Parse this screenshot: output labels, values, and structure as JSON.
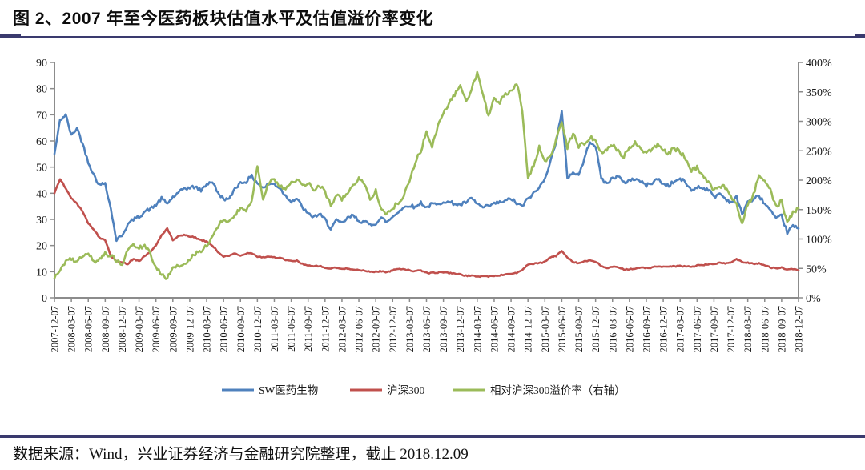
{
  "figure": {
    "title": "图 2、2007 年至今医药板块估值水平及估值溢价率变化",
    "source_note": "数据来源：Wind，兴业证券经济与金融研究院整理，截止 2018.12.09"
  },
  "accent_colors": {
    "rule_navy": "#3a3a6e",
    "axis_gray": "#8c8c8c"
  },
  "chart_data": {
    "type": "line",
    "title": "2007年至今医药板块估值水平及估值溢价率变化",
    "grid": false,
    "legend_position": "bottom",
    "left_axis": {
      "min": 0,
      "max": 90,
      "step": 10,
      "ticks": [
        "0",
        "10",
        "20",
        "30",
        "40",
        "50",
        "60",
        "70",
        "80",
        "90"
      ]
    },
    "right_axis": {
      "min": 0,
      "max": 400,
      "step": 50,
      "ticks": [
        "0%",
        "50%",
        "100%",
        "150%",
        "200%",
        "250%",
        "300%",
        "350%",
        "400%"
      ]
    },
    "x_tick_labels": [
      "2007-12-07",
      "2008-03-07",
      "2008-06-07",
      "2008-09-07",
      "2008-12-07",
      "2009-03-07",
      "2009-06-07",
      "2009-09-07",
      "2009-12-07",
      "2010-03-07",
      "2010-06-07",
      "2010-09-07",
      "2010-12-07",
      "2011-03-07",
      "2011-06-07",
      "2011-09-07",
      "2011-12-07",
      "2012-03-07",
      "2012-06-07",
      "2012-09-07",
      "2012-12-07",
      "2013-03-07",
      "2013-06-07",
      "2013-09-07",
      "2013-12-07",
      "2014-03-07",
      "2014-06-07",
      "2014-09-07",
      "2014-12-07",
      "2015-03-07",
      "2015-06-07",
      "2015-09-07",
      "2015-12-07",
      "2016-03-07",
      "2016-06-07",
      "2016-09-07",
      "2016-12-07",
      "2017-03-07",
      "2017-06-07",
      "2017-09-07",
      "2017-12-07",
      "2018-03-07",
      "2018-06-07",
      "2018-09-07",
      "2018-12-07"
    ],
    "x_monthly_start": "2007-12",
    "x_monthly_end": "2018-12",
    "series": [
      {
        "name": "SW医药生物",
        "color": "#4F81BD",
        "axis": "left",
        "values": [
          55,
          68,
          70,
          62,
          65,
          59,
          52,
          47,
          43,
          44,
          34,
          22,
          24,
          28,
          30,
          31,
          33,
          34,
          35.5,
          38,
          36,
          38.5,
          40,
          42,
          42,
          42.5,
          41,
          43.5,
          44.5,
          40,
          38,
          37.5,
          42,
          44,
          44.5,
          46.5,
          44,
          42,
          43.5,
          43.5,
          42,
          39,
          37,
          38,
          34.5,
          32,
          31,
          32,
          30,
          26.5,
          29.5,
          28.5,
          30.5,
          31.5,
          29.5,
          29,
          28,
          28.5,
          30.5,
          29,
          31,
          33,
          34.5,
          35.5,
          34.5,
          36.5,
          34.5,
          36,
          35.5,
          37,
          36.5,
          36,
          35.5,
          36.5,
          38,
          36,
          34.5,
          35,
          36,
          36.5,
          37,
          38,
          36,
          35,
          38,
          40,
          42,
          46,
          52,
          60,
          71,
          46,
          48,
          47,
          53,
          60,
          58,
          46,
          43.5,
          46,
          46.5,
          44,
          45,
          45.5,
          44.5,
          43,
          44,
          45.5,
          43.5,
          43,
          44.5,
          45.5,
          44,
          41,
          42.5,
          42,
          41.5,
          38.5,
          40,
          38,
          36.5,
          38.5,
          32,
          37,
          37.5,
          39,
          36,
          33.5,
          30,
          31.5,
          25,
          27.5,
          26.5
        ]
      },
      {
        "name": "沪深300",
        "color": "#C0504D",
        "axis": "left",
        "values": [
          40,
          45.5,
          42,
          38,
          36,
          33,
          28.5,
          26,
          23,
          22,
          16,
          14,
          13.5,
          13,
          15,
          14,
          16,
          17.5,
          20,
          24,
          26.5,
          22,
          23.5,
          24,
          23.5,
          23,
          22,
          21.5,
          20,
          17.5,
          15.8,
          16,
          17,
          16,
          17,
          17.2,
          15.8,
          15.5,
          15.8,
          15.5,
          15.2,
          14.5,
          14,
          14.2,
          13,
          12.3,
          12,
          12.2,
          11.4,
          11.2,
          11.5,
          11,
          11.2,
          11,
          10.6,
          10.3,
          10,
          10,
          10.2,
          9.8,
          10.5,
          11.2,
          11,
          10.5,
          10.2,
          10.4,
          9.6,
          9.5,
          9.7,
          9.8,
          9.5,
          9.4,
          8.9,
          8.5,
          8.4,
          8.2,
          8.3,
          8.2,
          8.3,
          8.6,
          9,
          9.2,
          9.6,
          10.5,
          12.8,
          13,
          13.2,
          13.8,
          15.5,
          16,
          18,
          15.5,
          13.8,
          13.2,
          14,
          14.2,
          13.8,
          12.2,
          11.4,
          11.8,
          11.6,
          10.9,
          11,
          11.2,
          11.5,
          11.4,
          11.6,
          12,
          11.8,
          11.9,
          12,
          12.2,
          12,
          11.9,
          12.3,
          12.6,
          12.8,
          13,
          13.3,
          13.2,
          13.5,
          14.8,
          13.7,
          13.4,
          13.1,
          13.2,
          12.4,
          11.6,
          11.3,
          11.6,
          10.8,
          10.9,
          10.5
        ]
      },
      {
        "name": "相对沪深300溢价率（右轴）",
        "color": "#9BBB59",
        "axis": "right",
        "values": [
          33,
          49,
          60,
          66,
          62,
          68,
          73,
          62,
          66,
          76,
          72,
          62,
          57,
          80,
          90,
          85,
          88,
          75,
          50,
          42,
          32,
          55,
          52,
          58,
          64,
          75,
          80,
          88,
          105,
          122,
          135,
          128,
          140,
          152,
          148,
          165,
          226,
          168,
          196,
          202,
          190,
          185,
          195,
          200,
          190,
          196,
          182,
          190,
          180,
          158,
          175,
          168,
          178,
          190,
          205,
          192,
          168,
          183,
          152,
          142,
          152,
          162,
          175,
          200,
          230,
          250,
          280,
          258,
          290,
          315,
          330,
          345,
          362,
          332,
          356,
          382,
          345,
          308,
          338,
          332,
          345,
          352,
          365,
          318,
          205,
          225,
          256,
          230,
          242,
          268,
          300,
          255,
          280,
          258,
          262,
          272,
          270,
          246,
          252,
          260,
          250,
          240,
          255,
          264,
          254,
          246,
          254,
          260,
          250,
          246,
          254,
          248,
          236,
          216,
          222,
          206,
          196,
          182,
          190,
          188,
          172,
          160,
          127,
          160,
          175,
          210,
          196,
          185,
          155,
          165,
          128,
          145,
          152
        ]
      }
    ]
  }
}
